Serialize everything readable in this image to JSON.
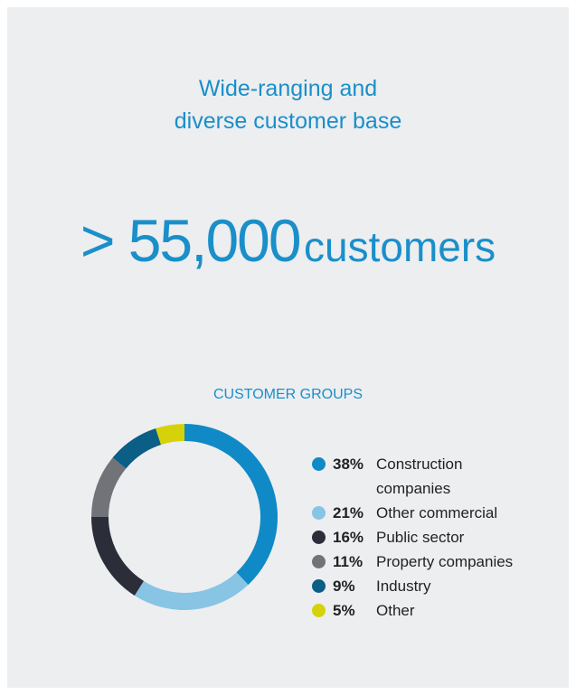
{
  "title": [
    "Wide-ranging and",
    "diverse customer base"
  ],
  "headline": {
    "number": "> 55,000",
    "unit": "customers"
  },
  "chart_data": {
    "type": "pie",
    "donut": true,
    "title": "CUSTOMER GROUPS",
    "categories": [
      "Construction companies",
      "Other commercial",
      "Public sector",
      "Property companies",
      "Industry",
      "Other"
    ],
    "values": [
      38,
      21,
      16,
      11,
      9,
      5
    ],
    "value_labels": [
      "38%",
      "21%",
      "16%",
      "11%",
      "9%",
      "5%"
    ],
    "colors": [
      "#0f8ac6",
      "#88c4e4",
      "#2b2d38",
      "#727379",
      "#0b5e86",
      "#d6d20a"
    ]
  }
}
